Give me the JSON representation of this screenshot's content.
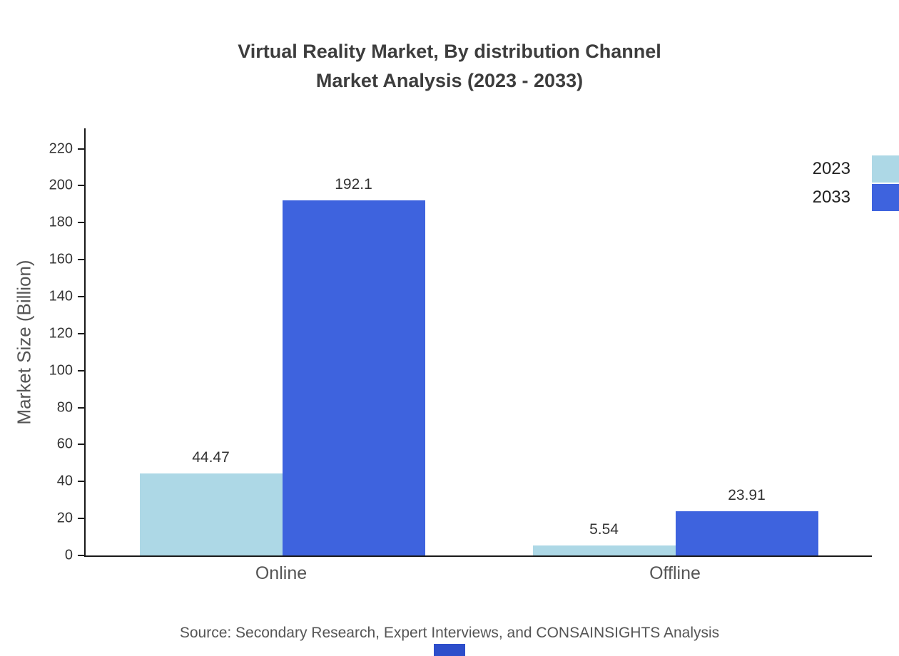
{
  "title": {
    "line1": "Virtual Reality Market, By distribution Channel",
    "line2": "Market Analysis (2023 - 2033)"
  },
  "source": "Source: Secondary Research, Expert Interviews, and CONSAINSIGHTS Analysis",
  "chart_data": {
    "type": "bar",
    "title": "Virtual Reality Market, By distribution Channel Market Analysis (2023 - 2033)",
    "categories": [
      "Online",
      "Offline"
    ],
    "series": [
      {
        "name": "2023",
        "color": "#add8e6",
        "values": [
          44.47,
          5.54
        ]
      },
      {
        "name": "2033",
        "color": "#3e63de",
        "values": [
          192.1,
          23.91
        ]
      }
    ],
    "xlabel": "",
    "ylabel": "Market Size (Billion)",
    "ylim": [
      0,
      231
    ],
    "yticks": [
      0,
      20,
      40,
      60,
      80,
      100,
      120,
      140,
      160,
      180,
      200,
      220
    ],
    "grid": false,
    "legend_position": "top-right"
  }
}
